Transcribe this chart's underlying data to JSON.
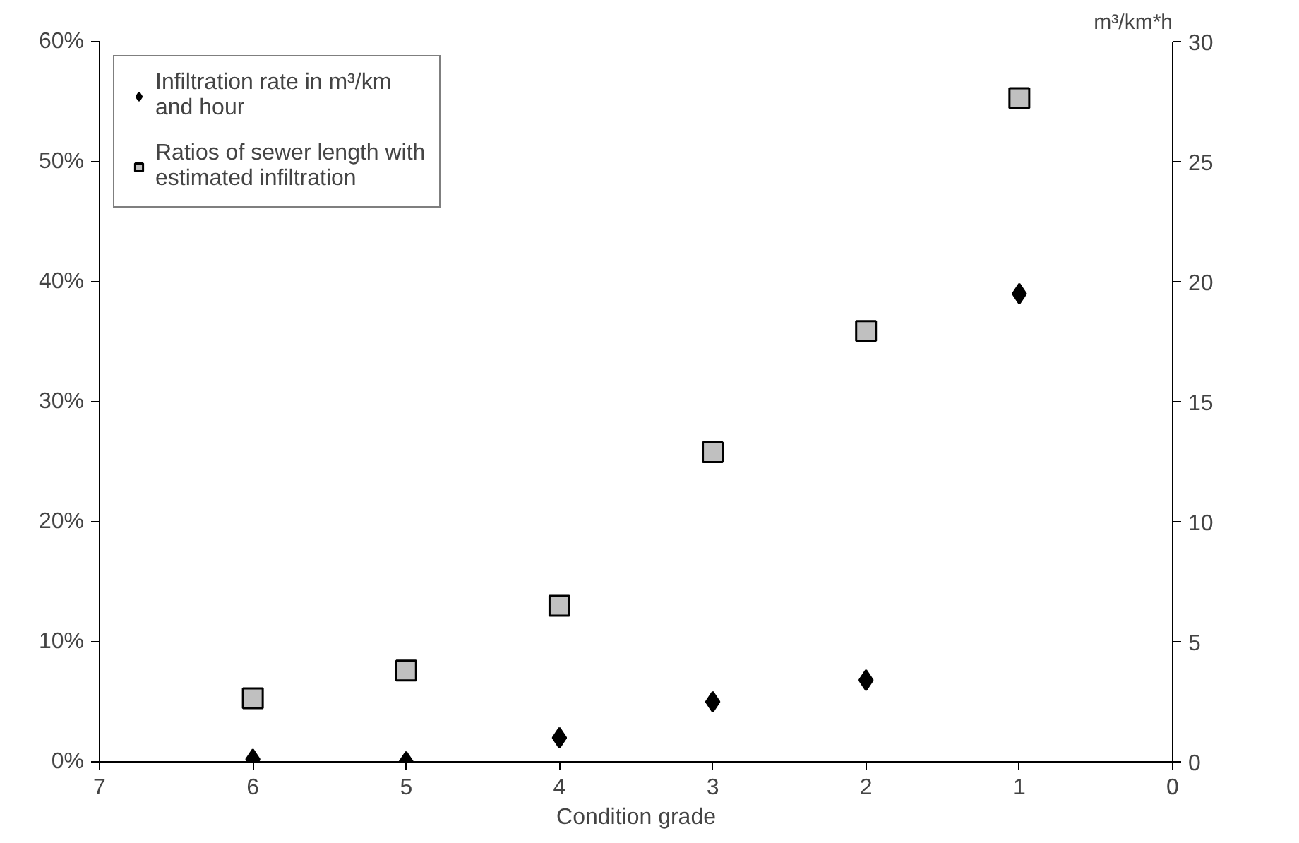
{
  "chart_data": {
    "type": "scatter",
    "xlabel": "Condition grade",
    "y2label": "m³/km*h",
    "x": [
      6,
      5,
      4,
      3,
      2,
      1
    ],
    "series": [
      {
        "name": "Infiltration rate in m³/km and hour",
        "color": "#000000",
        "marker": "diamond",
        "axis": "y2",
        "values": [
          0.1,
          0,
          1.0,
          2.5,
          3.4,
          19.5
        ]
      },
      {
        "name": "Ratios of sewer length with estimated infiltration",
        "color": "#c0c0c0",
        "marker": "square",
        "values": [
          5.3,
          7.6,
          13.0,
          25.8,
          35.9,
          55.3
        ]
      }
    ],
    "xlim": [
      7,
      0
    ],
    "xticks": [
      7,
      6,
      5,
      4,
      3,
      2,
      1,
      0
    ],
    "ylim": [
      0,
      60
    ],
    "yticks": [
      {
        "value": 0,
        "label": "0%"
      },
      {
        "value": 10,
        "label": "10%"
      },
      {
        "value": 20,
        "label": "20%"
      },
      {
        "value": 30,
        "label": "30%"
      },
      {
        "value": 40,
        "label": "40%"
      },
      {
        "value": 50,
        "label": "50%"
      },
      {
        "value": 60,
        "label": "60%"
      }
    ],
    "y2lim": [
      0,
      30
    ],
    "y2ticks": [
      0,
      5,
      10,
      15,
      20,
      25,
      30
    ],
    "grid": false,
    "legend": "top left"
  }
}
